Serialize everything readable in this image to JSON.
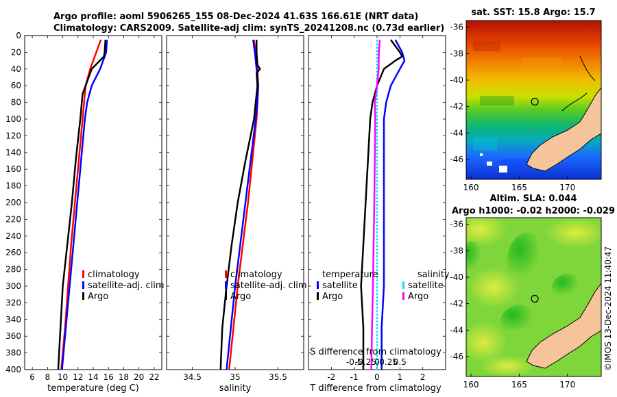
{
  "figure": {
    "title_line1": "Argo profile: aoml 5906265_155 08-Dec-2024 41.63S 166.61E (NRT data)",
    "title_line2": "Climatology: CARS2009. Satellite-adj clim: synTS_20241208.nc (0.73d earlier)",
    "stamp": "©IMOS 13-Dec-2024 11:40:47"
  },
  "colors": {
    "climatology": "#ff0000",
    "satellite": "#0000ff",
    "argo": "#000000",
    "salinity_satellite": "#00e5ff",
    "salinity_argo": "#ff00ff",
    "land": "#f5c49a"
  },
  "chart_data": [
    {
      "type": "line",
      "id": "temperature",
      "xlabel": "temperature (deg C)",
      "ylabel": "",
      "xlim": [
        5,
        23
      ],
      "ylim": [
        0,
        400
      ],
      "y_inverted": true,
      "xticks": [
        6,
        8,
        10,
        12,
        14,
        16,
        18,
        20,
        22
      ],
      "yticks": [
        0,
        20,
        40,
        60,
        80,
        100,
        120,
        140,
        160,
        180,
        200,
        220,
        240,
        260,
        280,
        300,
        320,
        340,
        360,
        380,
        400
      ],
      "legend": [
        "climatology",
        "satellite-adj. clim",
        "Argo"
      ],
      "series": [
        {
          "name": "climatology",
          "color": "#ff0000",
          "depth": [
            5,
            20,
            40,
            60,
            80,
            100,
            150,
            200,
            250,
            300,
            350,
            400
          ],
          "x": [
            15.0,
            14.4,
            13.6,
            13.0,
            12.8,
            12.6,
            12.1,
            11.6,
            11.1,
            10.7,
            10.3,
            9.8
          ]
        },
        {
          "name": "satellite-adj. clim",
          "color": "#0000ff",
          "depth": [
            5,
            20,
            40,
            60,
            80,
            100,
            150,
            200,
            250,
            300,
            350,
            400
          ],
          "x": [
            15.8,
            15.7,
            14.9,
            13.8,
            13.2,
            12.9,
            12.4,
            11.9,
            11.4,
            10.9,
            10.4,
            9.9
          ]
        },
        {
          "name": "Argo",
          "color": "#000000",
          "depth": [
            5,
            20,
            25,
            40,
            60,
            70,
            80,
            100,
            150,
            200,
            250,
            300,
            350,
            400
          ],
          "x": [
            15.6,
            15.5,
            15.4,
            13.8,
            13.0,
            12.6,
            12.5,
            12.3,
            11.7,
            11.2,
            10.6,
            10.0,
            9.7,
            9.4
          ]
        }
      ]
    },
    {
      "type": "line",
      "id": "salinity",
      "xlabel": "salinity",
      "ylabel": "",
      "xlim": [
        34.2,
        35.8
      ],
      "ylim": [
        0,
        400
      ],
      "y_inverted": true,
      "xticks": [
        34.5,
        35,
        35.5
      ],
      "xtick_labels": [
        "34.5",
        "35",
        "35.5"
      ],
      "legend": [
        "climatology",
        "satellite-adj. clim",
        "Argo"
      ],
      "series": [
        {
          "name": "climatology",
          "color": "#ff0000",
          "depth": [
            5,
            20,
            40,
            60,
            80,
            100,
            150,
            200,
            250,
            300,
            350,
            400
          ],
          "x": [
            35.22,
            35.24,
            35.26,
            35.27,
            35.26,
            35.25,
            35.2,
            35.15,
            35.09,
            35.03,
            34.98,
            34.93
          ]
        },
        {
          "name": "satellite-adj. clim",
          "color": "#0000ff",
          "depth": [
            5,
            20,
            40,
            60,
            80,
            100,
            150,
            200,
            250,
            300,
            350,
            400
          ],
          "x": [
            35.21,
            35.23,
            35.25,
            35.27,
            35.26,
            35.24,
            35.18,
            35.12,
            35.06,
            35.0,
            34.95,
            34.9
          ]
        },
        {
          "name": "Argo",
          "color": "#000000",
          "depth": [
            5,
            20,
            35,
            40,
            45,
            60,
            80,
            100,
            150,
            200,
            250,
            300,
            350,
            400
          ],
          "x": [
            35.25,
            35.25,
            35.26,
            35.29,
            35.25,
            35.26,
            35.24,
            35.22,
            35.12,
            35.03,
            34.96,
            34.9,
            34.85,
            34.83
          ]
        }
      ]
    },
    {
      "type": "line",
      "id": "difference",
      "xlabel": "T difference from climatology",
      "xlabel_top": "S difference from climatology",
      "xlim": [
        -3,
        3
      ],
      "ylim": [
        0,
        400
      ],
      "y_inverted": true,
      "xticks": [
        -2,
        -1,
        0,
        1,
        2
      ],
      "xtick_labels": [
        "-2",
        "-1",
        "0",
        "1",
        "2"
      ],
      "sticks": [
        -0.5,
        -0.25,
        0,
        0.25,
        0.5
      ],
      "stick_labels": [
        "-0.5",
        "-0.25",
        "0",
        "0.25",
        "0.5"
      ],
      "legend_titles": [
        "temperature",
        "salinity"
      ],
      "legend": [
        "satellite",
        "Argo",
        "satellite",
        "Argo"
      ],
      "series": [
        {
          "name": "temperature satellite",
          "color": "#0000ff",
          "depth": [
            5,
            20,
            30,
            40,
            60,
            80,
            100,
            150,
            200,
            250,
            300,
            350,
            400
          ],
          "x": [
            0.8,
            1.1,
            1.2,
            1.0,
            0.6,
            0.4,
            0.3,
            0.3,
            0.3,
            0.3,
            0.3,
            0.2,
            0.2
          ]
        },
        {
          "name": "temperature Argo",
          "color": "#000000",
          "depth": [
            5,
            20,
            25,
            30,
            40,
            60,
            80,
            100,
            150,
            200,
            250,
            300,
            350,
            400
          ],
          "x": [
            0.6,
            1.0,
            1.1,
            0.8,
            0.3,
            0.0,
            -0.2,
            -0.3,
            -0.4,
            -0.5,
            -0.6,
            -0.7,
            -0.6,
            -0.6
          ]
        },
        {
          "name": "salinity satellite",
          "color": "#00e5ff",
          "depth": [
            5,
            50,
            100,
            200,
            300,
            400
          ],
          "x": [
            0.0,
            0.0,
            0.0,
            0.0,
            0.0,
            0.0
          ]
        },
        {
          "name": "salinity Argo",
          "color": "#ff00ff",
          "depth": [
            5,
            20,
            40,
            60,
            80,
            100,
            150,
            200,
            250,
            300,
            350,
            400
          ],
          "x": [
            0.12,
            0.08,
            0.07,
            0.0,
            -0.1,
            -0.08,
            -0.1,
            -0.12,
            -0.15,
            -0.18,
            -0.22,
            -0.25
          ]
        }
      ]
    },
    {
      "type": "heatmap",
      "id": "sst_map",
      "title": "sat. SST: 15.8 Argo: 15.7",
      "xticks": [
        160,
        165,
        170
      ],
      "yticks": [
        -36,
        -38,
        -40,
        -42,
        -44,
        -46
      ],
      "xlim": [
        159.5,
        173.5
      ],
      "ylim": [
        -47.5,
        -35.5
      ],
      "marker": {
        "lon": 166.61,
        "lat": -41.63
      }
    },
    {
      "type": "heatmap",
      "id": "sla_map",
      "title_line1": "Altim. SLA: 0.044",
      "title_line2": "Argo h1000: -0.02 h2000: -0.029",
      "xticks": [
        160,
        165,
        170
      ],
      "yticks": [
        -36,
        -38,
        -40,
        -42,
        -44,
        -46
      ],
      "xlim": [
        159.5,
        173.5
      ],
      "ylim": [
        -47.5,
        -35.5
      ],
      "marker": {
        "lon": 166.61,
        "lat": -41.63
      }
    }
  ]
}
